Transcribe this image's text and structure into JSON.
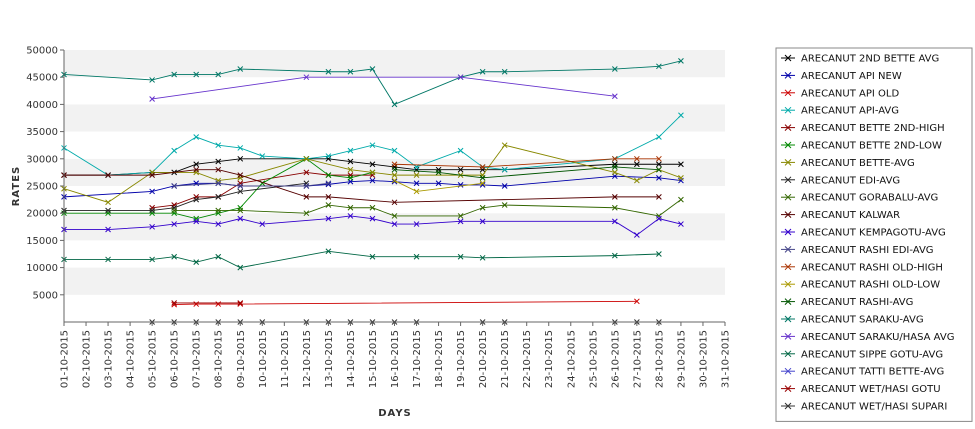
{
  "chart_data": {
    "type": "line",
    "title": "",
    "xlabel": "DAYS",
    "ylabel": "RATES",
    "ylim": [
      0,
      50000
    ],
    "yticks": [
      "5000",
      "10000",
      "15000",
      "20000",
      "25000",
      "30000",
      "35000",
      "40000",
      "45000",
      "50000"
    ],
    "grid": "alternating horizontal bands",
    "legend_position": "right",
    "categories": [
      "01-10-2015",
      "02-10-2015",
      "03-10-2015",
      "04-10-2015",
      "05-10-2015",
      "06-10-2015",
      "07-10-2015",
      "08-10-2015",
      "09-10-2015",
      "10-10-2015",
      "11-10-2015",
      "12-10-2015",
      "13-10-2015",
      "14-10-2015",
      "15-10-2015",
      "16-10-2015",
      "17-10-2015",
      "18-10-2015",
      "19-10-2015",
      "20-10-2015",
      "21-10-2015",
      "22-10-2015",
      "23-10-2015",
      "24-10-2015",
      "25-10-2015",
      "26-10-2015",
      "27-10-2015",
      "28-10-2015",
      "29-10-2015",
      "30-10-2015",
      "31-10-2015"
    ],
    "series": [
      {
        "name": "ARECANUT 2ND BETTE AVG",
        "color": "#000000",
        "values": [
          27000,
          null,
          27000,
          null,
          27500,
          27500,
          29000,
          29500,
          30000,
          null,
          null,
          30000,
          30000,
          29500,
          29000,
          28500,
          28000,
          28000,
          28000,
          28000,
          28000,
          null,
          null,
          null,
          null,
          29000,
          29000,
          29000,
          29000,
          null,
          null
        ]
      },
      {
        "name": "ARECANUT API NEW",
        "color": "#0000aa",
        "values": [
          23000,
          null,
          null,
          null,
          24000,
          25000,
          25500,
          25500,
          25000,
          null,
          null,
          25000,
          25300,
          25800,
          26000,
          25800,
          25500,
          25500,
          25200,
          25200,
          25000,
          null,
          null,
          null,
          null,
          26800,
          null,
          26500,
          26000,
          null,
          null
        ]
      },
      {
        "name": "ARECANUT API OLD",
        "color": "#cc0000",
        "values": [
          null,
          null,
          null,
          null,
          null,
          3200,
          3300,
          3300,
          3300,
          null,
          null,
          null,
          null,
          null,
          null,
          null,
          null,
          null,
          null,
          null,
          null,
          null,
          null,
          null,
          null,
          null,
          3800,
          null,
          null,
          null,
          null
        ]
      },
      {
        "name": "ARECANUT API-AVG",
        "color": "#00aaaa",
        "values": [
          32000,
          null,
          27000,
          null,
          27500,
          31500,
          34000,
          32500,
          32000,
          30500,
          null,
          30000,
          30500,
          31500,
          32500,
          31500,
          28500,
          null,
          31500,
          28500,
          28000,
          null,
          null,
          null,
          null,
          30000,
          null,
          34000,
          38000,
          null,
          null
        ]
      },
      {
        "name": "ARECANUT BETTE 2ND-HIGH",
        "color": "#880000",
        "values": [
          null,
          null,
          null,
          null,
          21000,
          21500,
          23000,
          23000,
          25500,
          null,
          null,
          27500,
          27000,
          27000,
          27000,
          null,
          null,
          null,
          null,
          null,
          null,
          null,
          null,
          null,
          null,
          null,
          null,
          null,
          null,
          null,
          null
        ]
      },
      {
        "name": "ARECANUT BETTE 2ND-LOW",
        "color": "#008800",
        "values": [
          20000,
          null,
          20000,
          null,
          20000,
          20000,
          19000,
          20000,
          21000,
          25500,
          null,
          30000,
          27000,
          26500,
          27500,
          null,
          null,
          null,
          null,
          null,
          null,
          null,
          null,
          null,
          null,
          null,
          null,
          null,
          null,
          null,
          null
        ]
      },
      {
        "name": "ARECANUT BETTE-AVG",
        "color": "#888800",
        "values": [
          24500,
          null,
          22000,
          null,
          27500,
          null,
          27500,
          26000,
          26500,
          null,
          null,
          30000,
          null,
          28000,
          27500,
          27000,
          27000,
          null,
          27000,
          27000,
          32500,
          null,
          null,
          null,
          null,
          27500,
          26000,
          28000,
          26500,
          null,
          null
        ]
      },
      {
        "name": "ARECANUT EDI-AVG",
        "color": "#222222",
        "values": [
          20500,
          null,
          20500,
          null,
          20500,
          21000,
          22500,
          23000,
          24000,
          null,
          null,
          25500,
          null,
          null,
          null,
          null,
          null,
          null,
          null,
          null,
          null,
          null,
          null,
          null,
          null,
          null,
          null,
          null,
          null,
          null,
          null
        ]
      },
      {
        "name": "ARECANUT GORABALU-AVG",
        "color": "#336600",
        "values": [
          null,
          null,
          null,
          null,
          null,
          20500,
          null,
          20500,
          20500,
          null,
          null,
          20000,
          21500,
          21000,
          21000,
          19500,
          null,
          null,
          19500,
          21000,
          21500,
          null,
          null,
          null,
          null,
          21000,
          null,
          19500,
          22500,
          null,
          null
        ]
      },
      {
        "name": "ARECANUT KALWAR",
        "color": "#550000",
        "values": [
          27000,
          null,
          27000,
          null,
          27000,
          null,
          28000,
          28000,
          27000,
          null,
          null,
          23000,
          23000,
          null,
          null,
          22000,
          null,
          null,
          null,
          null,
          null,
          null,
          null,
          null,
          null,
          23000,
          null,
          23000,
          null,
          null,
          null
        ]
      },
      {
        "name": "ARECANUT KEMPAGOTU-AVG",
        "color": "#3300cc",
        "values": [
          17000,
          null,
          17000,
          null,
          17500,
          18000,
          18500,
          18000,
          19000,
          18000,
          null,
          null,
          19000,
          19500,
          19000,
          18000,
          18000,
          null,
          18500,
          18500,
          null,
          null,
          null,
          null,
          null,
          18500,
          16000,
          19000,
          18000,
          null,
          null
        ]
      },
      {
        "name": "ARECANUT RASHI EDI-AVG",
        "color": "#444488",
        "values": [
          null,
          null,
          null,
          null,
          null,
          25000,
          null,
          25500,
          25000,
          null,
          null,
          25000,
          25500,
          null,
          null,
          null,
          null,
          null,
          null,
          null,
          null,
          null,
          null,
          null,
          null,
          null,
          null,
          null,
          null,
          null,
          null
        ]
      },
      {
        "name": "ARECANUT RASHI OLD-HIGH",
        "color": "#aa3300",
        "values": [
          null,
          null,
          null,
          null,
          null,
          null,
          null,
          null,
          null,
          null,
          null,
          null,
          null,
          null,
          null,
          29000,
          null,
          null,
          null,
          28500,
          null,
          null,
          null,
          null,
          null,
          30000,
          30000,
          30000,
          null,
          null,
          null
        ]
      },
      {
        "name": "ARECANUT RASHI OLD-LOW",
        "color": "#aa9900",
        "values": [
          null,
          null,
          null,
          null,
          null,
          null,
          null,
          null,
          null,
          null,
          null,
          null,
          null,
          null,
          null,
          26000,
          24000,
          null,
          null,
          25500,
          null,
          null,
          null,
          null,
          null,
          null,
          null,
          null,
          null,
          null,
          null
        ]
      },
      {
        "name": "ARECANUT RASHI-AVG",
        "color": "#005500",
        "values": [
          null,
          null,
          null,
          null,
          null,
          null,
          null,
          null,
          null,
          null,
          null,
          null,
          null,
          null,
          null,
          28000,
          null,
          27500,
          null,
          26500,
          null,
          null,
          null,
          null,
          null,
          28500,
          null,
          28000,
          null,
          null,
          null
        ]
      },
      {
        "name": "ARECANUT SARAKU-AVG",
        "color": "#007766",
        "values": [
          45500,
          null,
          null,
          null,
          44500,
          45500,
          45500,
          45500,
          46500,
          null,
          null,
          null,
          46000,
          46000,
          46500,
          40000,
          null,
          null,
          45000,
          46000,
          46000,
          null,
          null,
          null,
          null,
          46500,
          null,
          47000,
          48000,
          null,
          null
        ]
      },
      {
        "name": "ARECANUT SARAKU/HASA AVG",
        "color": "#6633cc",
        "values": [
          null,
          null,
          null,
          null,
          41000,
          null,
          null,
          null,
          null,
          null,
          null,
          45000,
          null,
          null,
          null,
          null,
          null,
          null,
          45000,
          null,
          null,
          null,
          null,
          null,
          null,
          41500,
          null,
          null,
          null,
          null,
          null
        ]
      },
      {
        "name": "ARECANUT SIPPE GOTU-AVG",
        "color": "#006644",
        "values": [
          11500,
          null,
          11500,
          null,
          11500,
          12000,
          11000,
          12000,
          10000,
          null,
          null,
          null,
          13000,
          null,
          12000,
          null,
          12000,
          null,
          12000,
          11800,
          null,
          null,
          null,
          null,
          null,
          12200,
          null,
          12500,
          null,
          null,
          null
        ]
      },
      {
        "name": "ARECANUT TATTI BETTE-AVG",
        "color": "#4444cc",
        "values": [
          null,
          null,
          null,
          null,
          null,
          null,
          null,
          null,
          null,
          null,
          null,
          null,
          null,
          null,
          null,
          null,
          null,
          null,
          null,
          null,
          null,
          null,
          null,
          null,
          null,
          null,
          null,
          null,
          null,
          null,
          null
        ]
      },
      {
        "name": "ARECANUT WET/HASI GOTU",
        "color": "#990000",
        "values": [
          null,
          null,
          null,
          null,
          null,
          3500,
          null,
          null,
          3500,
          null,
          null,
          null,
          null,
          null,
          null,
          null,
          null,
          null,
          null,
          null,
          null,
          null,
          null,
          null,
          null,
          null,
          null,
          null,
          null,
          null,
          null
        ]
      },
      {
        "name": "ARECANUT WET/HASI SUPARI",
        "color": "#333333",
        "values": [
          null,
          null,
          null,
          null,
          0,
          0,
          0,
          0,
          0,
          0,
          null,
          0,
          0,
          0,
          0,
          0,
          0,
          null,
          null,
          0,
          0,
          null,
          null,
          null,
          null,
          0,
          0,
          0,
          null,
          null,
          null
        ]
      }
    ]
  }
}
